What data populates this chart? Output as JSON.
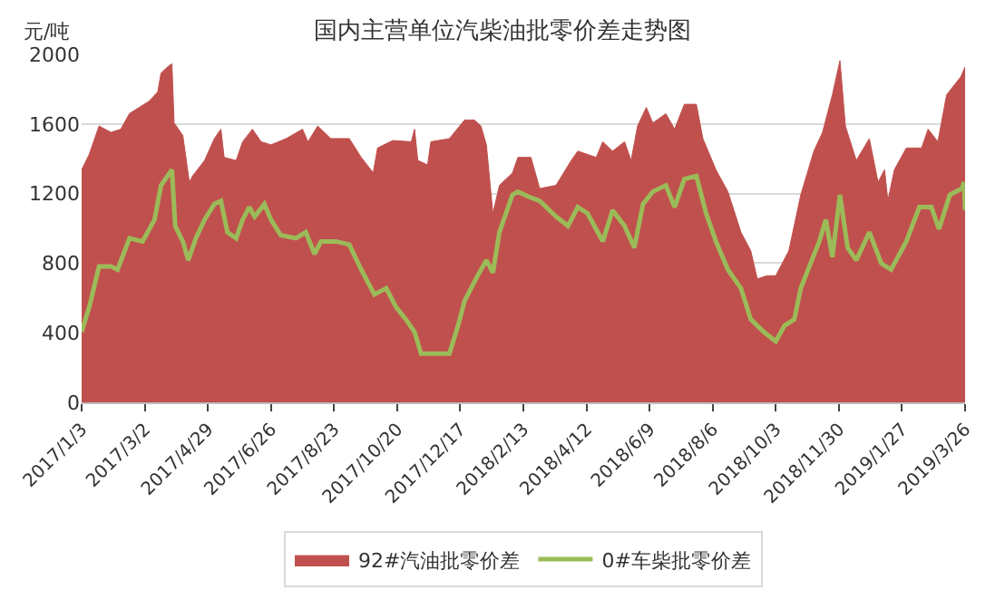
{
  "chart_data": {
    "type": "area",
    "title": "国内主营单位汽柴油批零价差走势图",
    "ylabel": "元/吨",
    "xlim": [
      "2017-01-03",
      "2019-03-26"
    ],
    "ylim": [
      0,
      2000
    ],
    "yticks": [
      0,
      400,
      800,
      1200,
      1600,
      2000
    ],
    "xticks": [
      {
        "value": "2017-01-03",
        "label": "2017/1/3"
      },
      {
        "value": "2017-03-02",
        "label": "2017/3/2"
      },
      {
        "value": "2017-04-29",
        "label": "2017/4/29"
      },
      {
        "value": "2017-06-26",
        "label": "2017/6/26"
      },
      {
        "value": "2017-08-23",
        "label": "2017/8/23"
      },
      {
        "value": "2017-10-20",
        "label": "2017/10/20"
      },
      {
        "value": "2017-12-17",
        "label": "2017/12/17"
      },
      {
        "value": "2018-02-13",
        "label": "2018/2/13"
      },
      {
        "value": "2018-04-12",
        "label": "2018/4/12"
      },
      {
        "value": "2018-06-09",
        "label": "2018/6/9"
      },
      {
        "value": "2018-08-06",
        "label": "2018/8/6"
      },
      {
        "value": "2018-10-03",
        "label": "2018/10/3"
      },
      {
        "value": "2018-11-30",
        "label": "2018/11/30"
      },
      {
        "value": "2019-01-27",
        "label": "2019/1/27"
      },
      {
        "value": "2019-03-26",
        "label": "2019/3/26"
      }
    ],
    "grid": "y",
    "legend": "bottom",
    "series": [
      {
        "name": "92#汽油批零价差",
        "color": "#c0504d",
        "x": [
          "2017-01-03",
          "2017-01-10",
          "2017-01-19",
          "2017-01-30",
          "2017-02-08",
          "2017-02-16",
          "2017-03-06",
          "2017-03-14",
          "2017-03-17",
          "2017-03-23",
          "2017-03-27",
          "2017-03-29",
          "2017-04-06",
          "2017-04-12",
          "2017-04-15",
          "2017-04-26",
          "2017-05-05",
          "2017-05-11",
          "2017-05-14",
          "2017-05-25",
          "2017-05-31",
          "2017-06-09",
          "2017-06-17",
          "2017-06-26",
          "2017-07-10",
          "2017-07-25",
          "2017-07-30",
          "2017-08-08",
          "2017-08-20",
          "2017-09-06",
          "2017-09-17",
          "2017-09-28",
          "2017-10-02",
          "2017-10-16",
          "2017-11-02",
          "2017-11-05",
          "2017-11-08",
          "2017-11-17",
          "2017-11-20",
          "2017-12-07",
          "2017-12-21",
          "2017-12-30",
          "2018-01-05",
          "2018-01-10",
          "2018-01-16",
          "2018-01-22",
          "2018-02-03",
          "2018-02-08",
          "2018-02-20",
          "2018-02-28",
          "2018-03-15",
          "2018-03-29",
          "2018-04-04",
          "2018-04-21",
          "2018-04-27",
          "2018-05-06",
          "2018-05-17",
          "2018-05-23",
          "2018-05-29",
          "2018-06-06",
          "2018-06-12",
          "2018-06-24",
          "2018-07-02",
          "2018-07-11",
          "2018-07-22",
          "2018-07-28",
          "2018-08-09",
          "2018-08-20",
          "2018-09-01",
          "2018-09-10",
          "2018-09-16",
          "2018-09-25",
          "2018-10-03",
          "2018-10-15",
          "2018-10-26",
          "2018-11-07",
          "2018-11-15",
          "2018-11-24",
          "2018-12-01",
          "2018-12-06",
          "2018-12-16",
          "2018-12-28",
          "2019-01-05",
          "2019-01-11",
          "2019-01-14",
          "2019-01-20",
          "2019-01-31",
          "2019-02-14",
          "2019-02-20",
          "2019-03-01",
          "2019-03-09",
          "2019-03-18",
          "2019-03-22",
          "2019-03-26"
        ],
        "values": [
          1337,
          1426,
          1588,
          1552,
          1570,
          1660,
          1731,
          1785,
          1892,
          1928,
          1946,
          1606,
          1534,
          1265,
          1301,
          1390,
          1516,
          1570,
          1408,
          1390,
          1498,
          1570,
          1498,
          1480,
          1516,
          1570,
          1498,
          1588,
          1516,
          1516,
          1408,
          1319,
          1462,
          1505,
          1498,
          1570,
          1390,
          1365,
          1498,
          1516,
          1623,
          1623,
          1588,
          1480,
          1086,
          1247,
          1319,
          1408,
          1408,
          1229,
          1247,
          1390,
          1444,
          1408,
          1498,
          1444,
          1498,
          1390,
          1588,
          1695,
          1606,
          1659,
          1570,
          1713,
          1713,
          1516,
          1337,
          1211,
          978,
          871,
          710,
          728,
          728,
          871,
          1193,
          1444,
          1552,
          1767,
          1964,
          1588,
          1390,
          1516,
          1265,
          1337,
          1158,
          1337,
          1462,
          1462,
          1570,
          1498,
          1767,
          1839,
          1870,
          1928
        ]
      },
      {
        "name": "0#车柴批零价差",
        "type": "line",
        "color": "#9bbb59",
        "x": [
          "2017-01-03",
          "2017-01-10",
          "2017-01-19",
          "2017-01-30",
          "2017-02-05",
          "2017-02-16",
          "2017-02-28",
          "2017-03-11",
          "2017-03-17",
          "2017-03-23",
          "2017-03-27",
          "2017-03-30",
          "2017-04-06",
          "2017-04-11",
          "2017-04-18",
          "2017-04-26",
          "2017-05-05",
          "2017-05-11",
          "2017-05-17",
          "2017-05-25",
          "2017-05-31",
          "2017-06-06",
          "2017-06-11",
          "2017-06-20",
          "2017-06-26",
          "2017-07-05",
          "2017-07-19",
          "2017-07-28",
          "2017-08-05",
          "2017-08-11",
          "2017-08-25",
          "2017-09-06",
          "2017-09-17",
          "2017-09-29",
          "2017-10-10",
          "2017-10-19",
          "2017-10-28",
          "2017-11-05",
          "2017-11-11",
          "2017-11-25",
          "2017-12-07",
          "2017-12-15",
          "2017-12-21",
          "2018-01-02",
          "2018-01-10",
          "2018-01-16",
          "2018-01-22",
          "2018-02-03",
          "2018-02-08",
          "2018-02-20",
          "2018-02-28",
          "2018-03-15",
          "2018-03-26",
          "2018-04-04",
          "2018-04-13",
          "2018-04-27",
          "2018-05-06",
          "2018-05-17",
          "2018-05-26",
          "2018-06-03",
          "2018-06-12",
          "2018-06-24",
          "2018-07-02",
          "2018-07-11",
          "2018-07-22",
          "2018-07-31",
          "2018-08-09",
          "2018-08-20",
          "2018-09-01",
          "2018-09-10",
          "2018-09-22",
          "2018-10-03",
          "2018-10-11",
          "2018-10-20",
          "2018-10-26",
          "2018-11-04",
          "2018-11-12",
          "2018-11-18",
          "2018-11-24",
          "2018-12-01",
          "2018-12-08",
          "2018-12-16",
          "2018-12-28",
          "2019-01-08",
          "2019-01-17",
          "2019-01-31",
          "2019-02-12",
          "2019-02-23",
          "2019-03-02",
          "2019-03-12",
          "2019-03-23",
          "2019-03-25",
          "2019-03-26"
        ],
        "values": [
          405,
          548,
          781,
          781,
          763,
          943,
          925,
          1050,
          1247,
          1301,
          1337,
          1014,
          925,
          817,
          943,
          1050,
          1140,
          1158,
          978,
          943,
          1050,
          1122,
          1068,
          1140,
          1050,
          961,
          943,
          978,
          853,
          925,
          925,
          907,
          763,
          620,
          656,
          548,
          477,
          405,
          280,
          280,
          280,
          441,
          584,
          728,
          817,
          746,
          978,
          1193,
          1211,
          1176,
          1158,
          1068,
          1014,
          1122,
          1086,
          925,
          1104,
          1014,
          889,
          1140,
          1211,
          1247,
          1122,
          1283,
          1301,
          1086,
          925,
          763,
          656,
          477,
          405,
          351,
          441,
          477,
          656,
          799,
          925,
          1050,
          835,
          1193,
          889,
          817,
          978,
          799,
          763,
          925,
          1122,
          1122,
          996,
          1193,
          1229,
          1265,
          1104
        ]
      }
    ]
  }
}
